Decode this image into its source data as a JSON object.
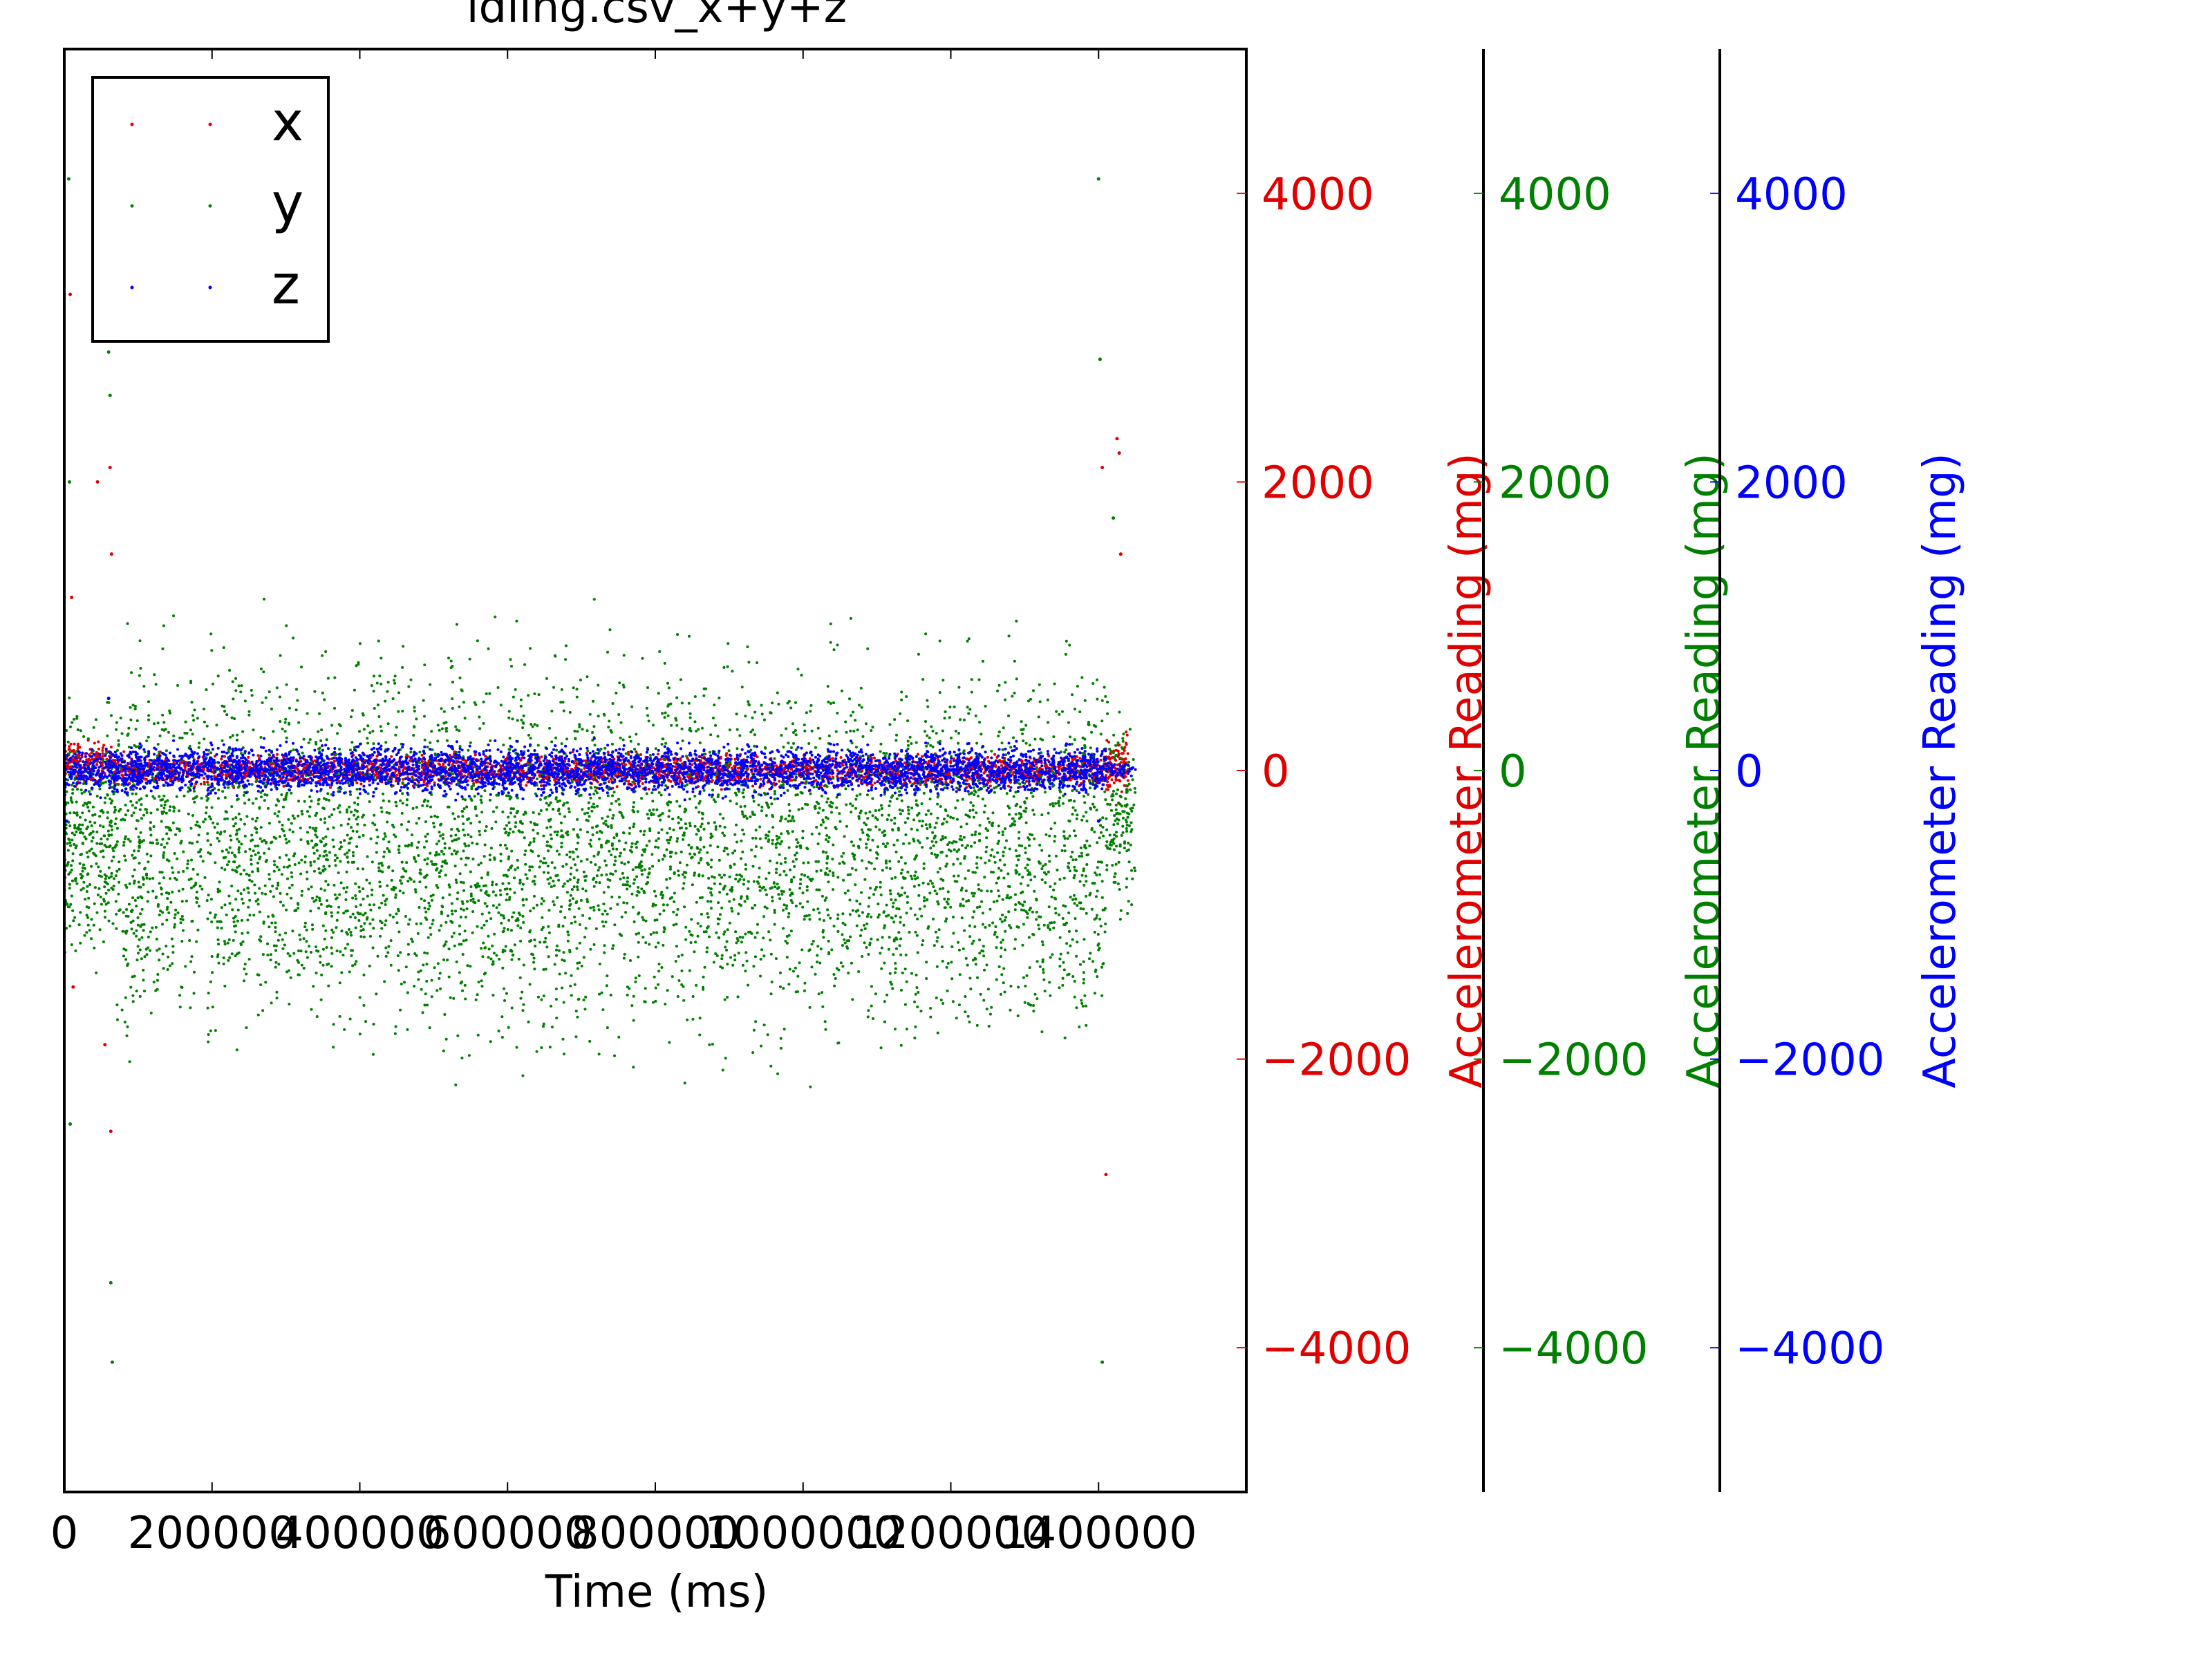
{
  "chart_data": {
    "type": "scatter",
    "title": "idling.csv_x+y+z",
    "xlabel": "Time (ms)",
    "xlim": [
      0,
      1600000
    ],
    "x_ticks": [
      0,
      200000,
      400000,
      600000,
      800000,
      1000000,
      1200000,
      1400000
    ],
    "x_tick_labels": [
      "0",
      "200000",
      "400000",
      "600000",
      "800000",
      "1000000",
      "1200000",
      "1400000"
    ],
    "ylim": [
      -5000,
      5000
    ],
    "y_ticks": [
      4000,
      2000,
      0,
      -2000,
      -4000
    ],
    "y_tick_labels": [
      "4000",
      "2000",
      "0",
      "−2000",
      "−4000"
    ],
    "legend": {
      "placement": "top-left",
      "entries": [
        "x",
        "y",
        "z"
      ]
    },
    "grid": false,
    "axes": [
      {
        "series": "x",
        "ylabel": "Accelerometer Reading (mg)",
        "color": "#e00000"
      },
      {
        "series": "y",
        "ylabel": "Accelerometer Reading (mg)",
        "color": "#008000"
      },
      {
        "series": "z",
        "ylabel": "Accelerometer Reading (mg)",
        "color": "#0000ff"
      }
    ],
    "series": [
      {
        "name": "x",
        "color": "#e00000",
        "active_span": [
          0,
          1440000
        ],
        "bands": [
          {
            "x_range": [
              0,
              65000
            ],
            "y_range": [
              -150,
              250
            ]
          },
          {
            "x_range": [
              65000,
              1410000
            ],
            "y_range": [
              -150,
              150
            ]
          },
          {
            "x_range": [
              1410000,
              1440000
            ],
            "y_range": [
              -250,
              300
            ]
          }
        ],
        "outliers": [
          {
            "x": 8000,
            "y": 3300
          },
          {
            "x": 10000,
            "y": 1200
          },
          {
            "x": 12000,
            "y": -1500
          },
          {
            "x": 45000,
            "y": 2000
          },
          {
            "x": 55000,
            "y": -1900
          },
          {
            "x": 62000,
            "y": 2100
          },
          {
            "x": 63000,
            "y": -2500
          },
          {
            "x": 64000,
            "y": 1500
          },
          {
            "x": 1405000,
            "y": 2100
          },
          {
            "x": 1410000,
            "y": -2800
          },
          {
            "x": 1425000,
            "y": 2300
          },
          {
            "x": 1428000,
            "y": 2200
          },
          {
            "x": 1430000,
            "y": 1500
          }
        ]
      },
      {
        "name": "y",
        "color": "#008000",
        "active_span": [
          0,
          1450000
        ],
        "bands": [
          {
            "x_range": [
              0,
              70000
            ],
            "y_range": [
              -1600,
              700
            ]
          },
          {
            "x_range": [
              70000,
              1410000
            ],
            "y_range": [
              -2300,
              1250
            ]
          },
          {
            "x_range": [
              1410000,
              1450000
            ],
            "y_range": [
              -1200,
              600
            ]
          }
        ],
        "outliers": [
          {
            "x": 6000,
            "y": 4100
          },
          {
            "x": 7000,
            "y": 2000
          },
          {
            "x": 8000,
            "y": -2450
          },
          {
            "x": 60000,
            "y": 2900
          },
          {
            "x": 62000,
            "y": 2600
          },
          {
            "x": 63000,
            "y": -3550
          },
          {
            "x": 65000,
            "y": -4100
          },
          {
            "x": 1400000,
            "y": 4100
          },
          {
            "x": 1402000,
            "y": 2850
          },
          {
            "x": 1405000,
            "y": -4100
          },
          {
            "x": 1420000,
            "y": 1750
          }
        ]
      },
      {
        "name": "z",
        "color": "#0000ff",
        "active_span": [
          0,
          1450000
        ],
        "bands": [
          {
            "x_range": [
              0,
              70000
            ],
            "y_range": [
              -200,
              200
            ]
          },
          {
            "x_range": [
              70000,
              1410000
            ],
            "y_range": [
              -220,
              230
            ]
          },
          {
            "x_range": [
              1410000,
              1450000
            ],
            "y_range": [
              -80,
              80
            ]
          }
        ],
        "outliers": [
          {
            "x": 3000,
            "y": -350
          },
          {
            "x": 60000,
            "y": 500
          },
          {
            "x": 1400000,
            "y": -350
          }
        ]
      }
    ]
  }
}
